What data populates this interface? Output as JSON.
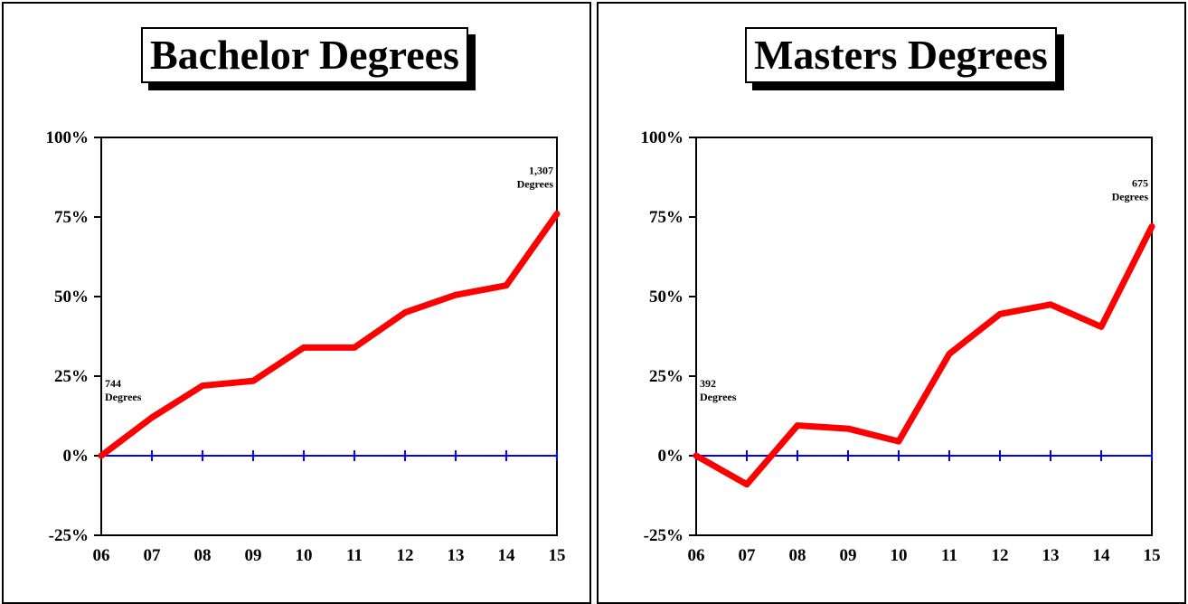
{
  "chart_data": [
    {
      "type": "line",
      "title": "Bachelor Degrees",
      "categories": [
        "06",
        "07",
        "08",
        "09",
        "10",
        "11",
        "12",
        "13",
        "14",
        "15"
      ],
      "series": [
        {
          "values": [
            0,
            12,
            22,
            23.5,
            34,
            34,
            45,
            50.5,
            53.5,
            76
          ]
        }
      ],
      "ylim": [
        -25,
        100
      ],
      "yticks": [
        "-25%",
        "0%",
        "25%",
        "50%",
        "75%",
        "100%"
      ],
      "ytick_values": [
        -25,
        0,
        25,
        50,
        75,
        100
      ],
      "annotations": [
        {
          "lines": [
            "744",
            "Degrees"
          ],
          "at": "start"
        },
        {
          "lines": [
            "1,307",
            "Degrees"
          ],
          "at": "end"
        }
      ],
      "line_color": "#ff0000",
      "zero_line_color": "#0000ff"
    },
    {
      "type": "line",
      "title": "Masters Degrees",
      "categories": [
        "06",
        "07",
        "08",
        "09",
        "10",
        "11",
        "12",
        "13",
        "14",
        "15"
      ],
      "series": [
        {
          "values": [
            0,
            -9,
            9.5,
            8.5,
            4.5,
            32,
            44.5,
            47.5,
            40.5,
            72
          ]
        }
      ],
      "ylim": [
        -25,
        100
      ],
      "yticks": [
        "-25%",
        "0%",
        "25%",
        "50%",
        "75%",
        "100%"
      ],
      "ytick_values": [
        -25,
        0,
        25,
        50,
        75,
        100
      ],
      "annotations": [
        {
          "lines": [
            "392",
            "Degrees"
          ],
          "at": "start"
        },
        {
          "lines": [
            "675",
            "Degrees"
          ],
          "at": "end"
        }
      ],
      "line_color": "#ff0000",
      "zero_line_color": "#0000ff"
    }
  ]
}
